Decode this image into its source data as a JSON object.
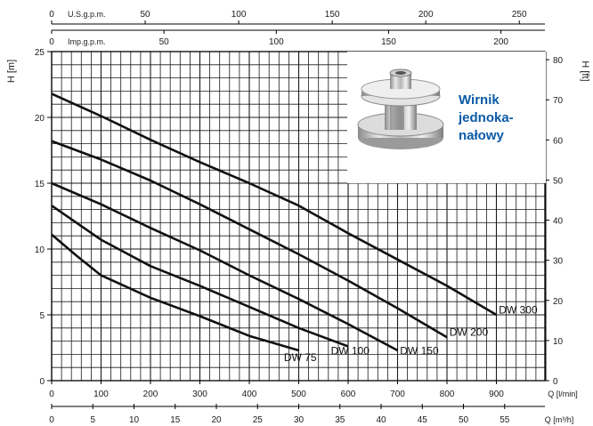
{
  "chart_data": {
    "type": "line",
    "title": "",
    "ylabel": "H [m]",
    "ylabel_right": "H [ft]",
    "xlabel": "Q [l/min]",
    "xlabel_m3h": "Q [m³/h]",
    "top_axis_us": "U.S.g.p.m.",
    "top_axis_imp": "Imp.g.p.m.",
    "xlim": [
      0,
      1000
    ],
    "ylim": [
      0,
      25
    ],
    "grid": true,
    "x_ticks_lpm": [
      "0",
      "100",
      "200",
      "300",
      "400",
      "500",
      "600",
      "700",
      "800",
      "900"
    ],
    "x_ticks_m3h": [
      "0",
      "5",
      "10",
      "15",
      "20",
      "25",
      "30",
      "35",
      "40",
      "45",
      "50",
      "55"
    ],
    "x_ticks_us": [
      "0",
      "50",
      "100",
      "150",
      "200",
      "250"
    ],
    "x_ticks_imp": [
      "0",
      "50",
      "100",
      "150",
      "200"
    ],
    "y_ticks_m": [
      "0",
      "5",
      "10",
      "15",
      "20",
      "25"
    ],
    "y_ticks_ft": [
      "0",
      "10",
      "20",
      "30",
      "40",
      "50",
      "60",
      "70",
      "80"
    ],
    "series": [
      {
        "name": "DW 75",
        "x": [
          0,
          50,
          100,
          200,
          300,
          400,
          500
        ],
        "y": [
          11.1,
          9.5,
          8.0,
          6.3,
          4.9,
          3.4,
          2.3
        ]
      },
      {
        "name": "DW 100",
        "x": [
          0,
          100,
          200,
          300,
          400,
          500,
          600
        ],
        "y": [
          13.3,
          10.7,
          8.7,
          7.2,
          5.6,
          4.0,
          2.6
        ]
      },
      {
        "name": "DW 150",
        "x": [
          0,
          100,
          200,
          300,
          400,
          500,
          600,
          700
        ],
        "y": [
          15.0,
          13.4,
          11.6,
          9.9,
          8.0,
          6.2,
          4.3,
          2.3
        ]
      },
      {
        "name": "DW 200",
        "x": [
          0,
          100,
          200,
          300,
          400,
          500,
          600,
          700,
          800
        ],
        "y": [
          18.2,
          16.8,
          15.2,
          13.4,
          11.5,
          9.6,
          7.6,
          5.5,
          3.3
        ]
      },
      {
        "name": "DW 300",
        "x": [
          0,
          100,
          200,
          300,
          400,
          500,
          600,
          700,
          800,
          900
        ],
        "y": [
          21.8,
          20.1,
          18.3,
          16.6,
          15.0,
          13.3,
          11.2,
          9.2,
          7.2,
          5.0
        ]
      }
    ],
    "legend": "labels at curve ends"
  },
  "inset": {
    "caption_lines": [
      "Wirnik",
      "jednoka-",
      "nałowy"
    ],
    "image": "impeller-photo",
    "caption_color": "#0b5aa6"
  },
  "colors": {
    "curve": "#111111",
    "grid": "#1a1a1a"
  }
}
